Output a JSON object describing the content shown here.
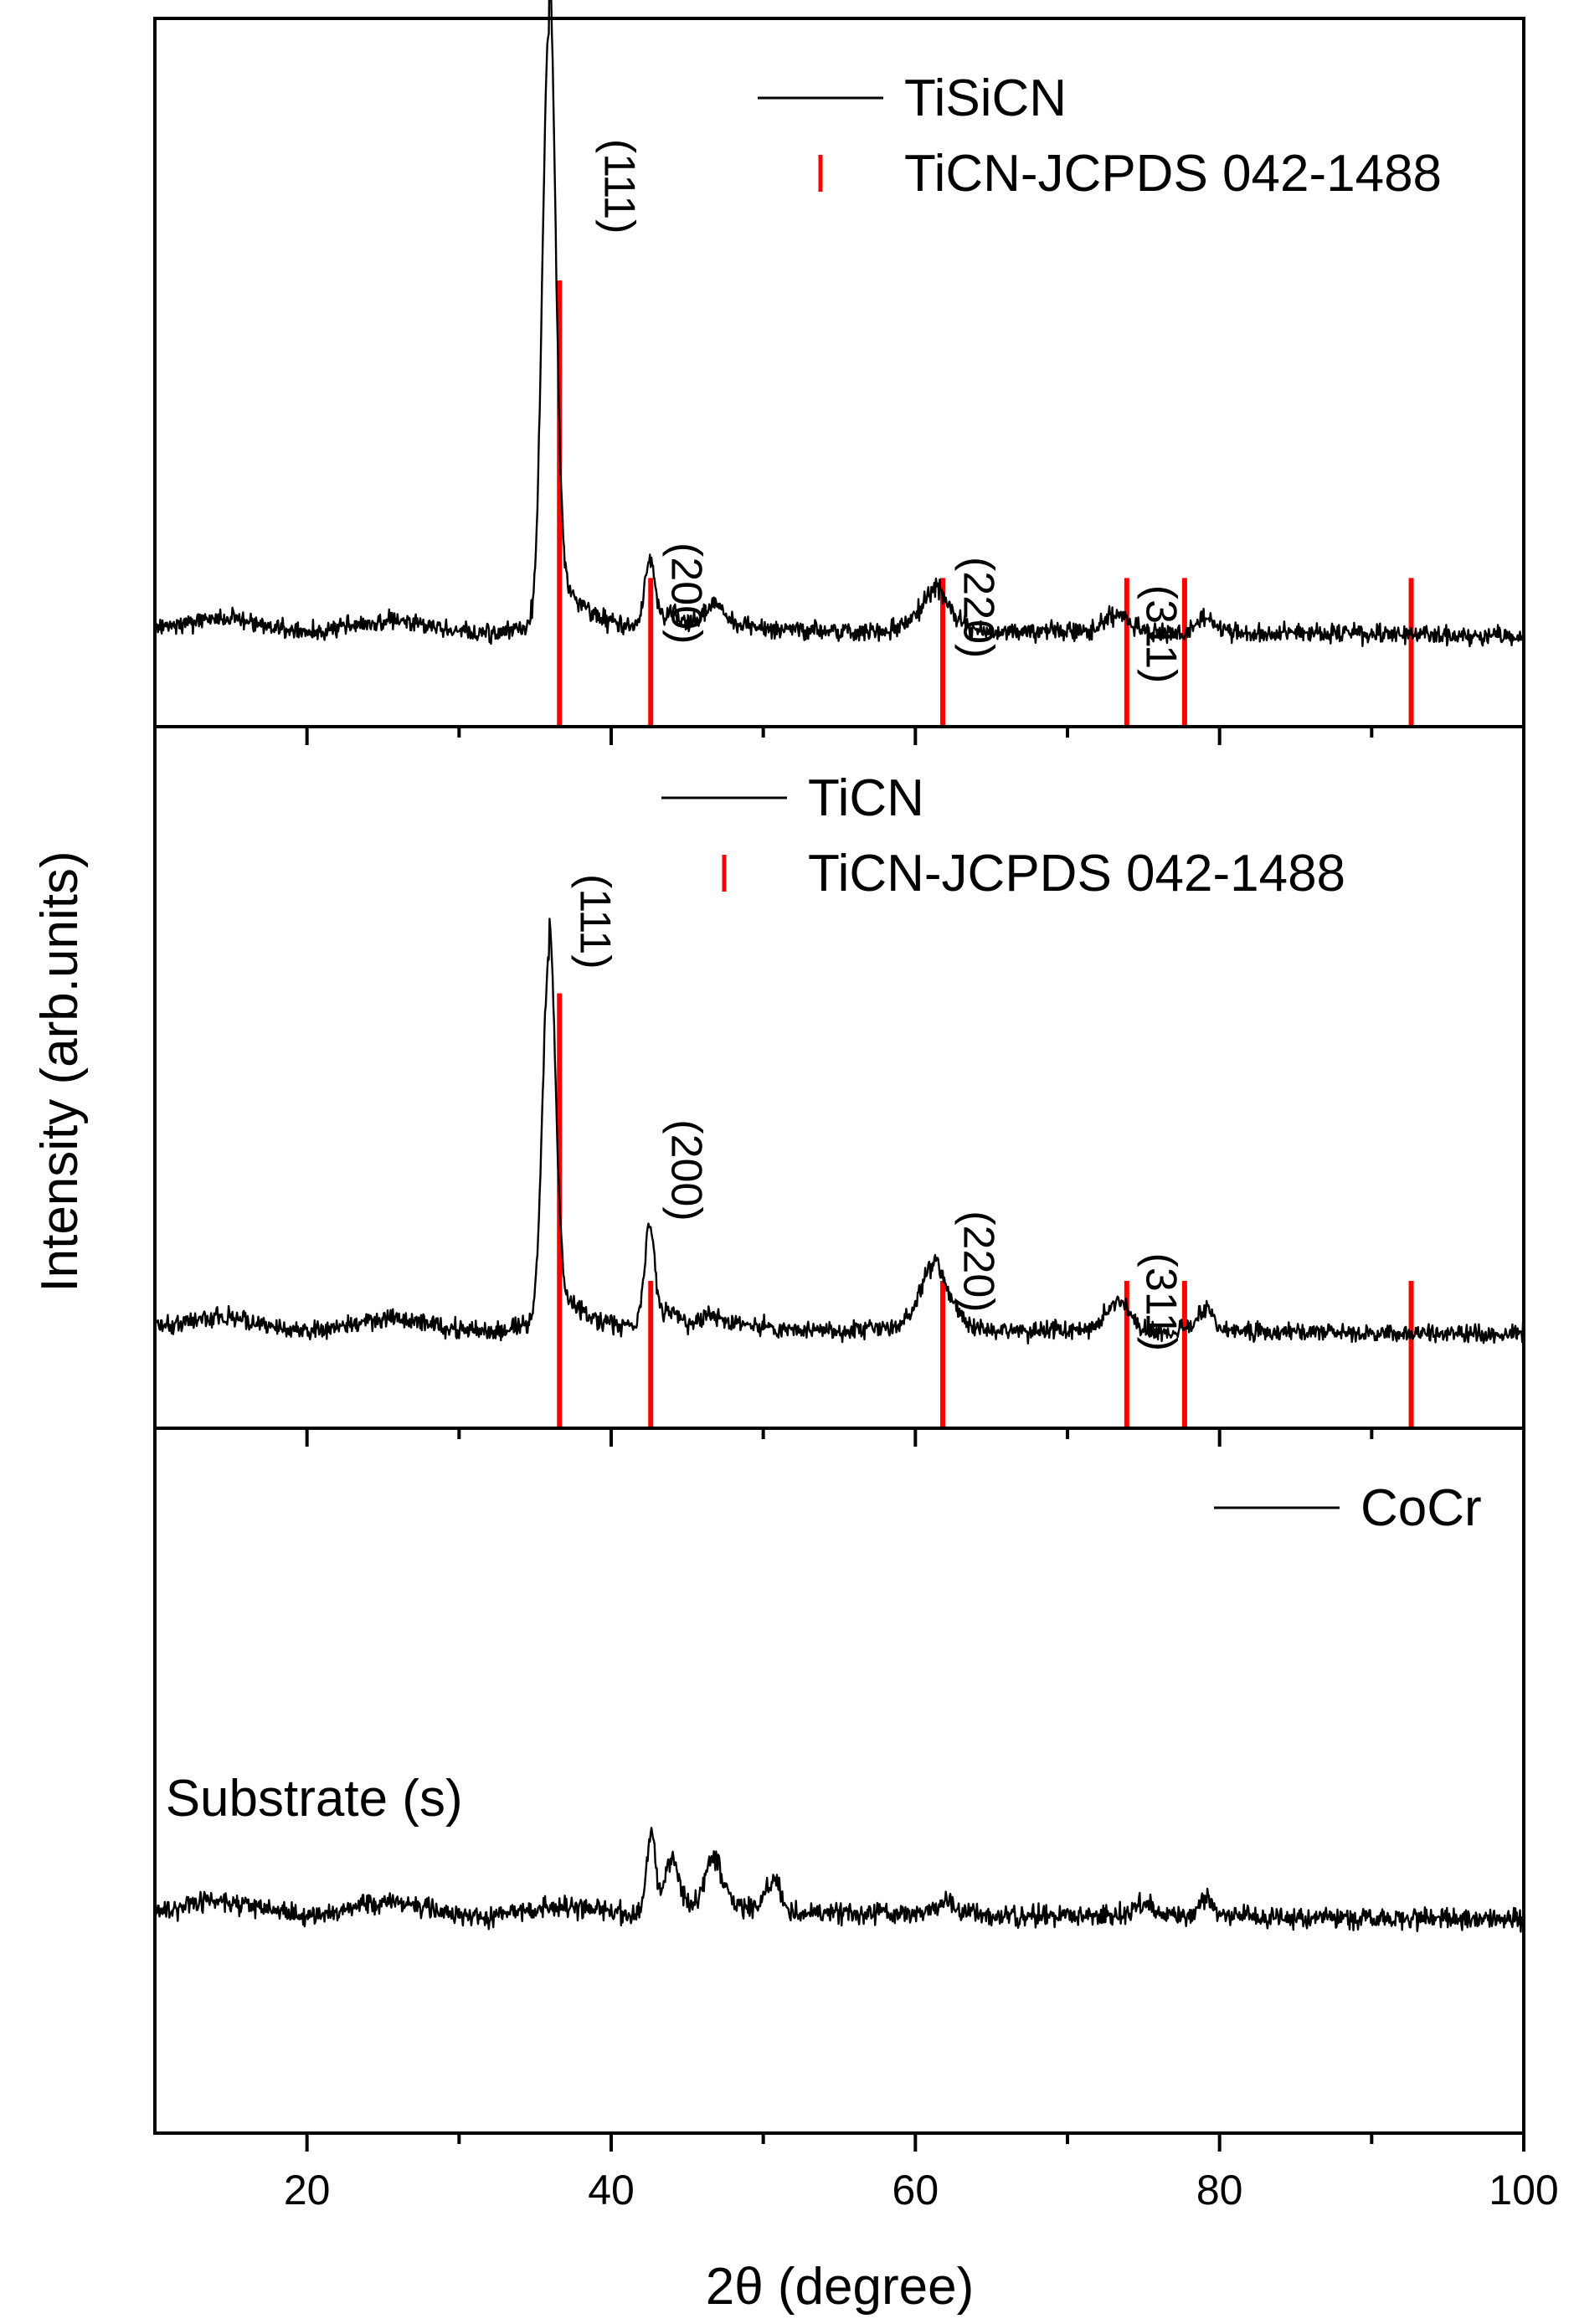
{
  "chart_data": {
    "type": "line",
    "xlabel": "2θ (degree)",
    "ylabel": "Intensity (arb.units)",
    "xlim": [
      10,
      100
    ],
    "xticks": [
      20,
      40,
      60,
      80,
      100
    ],
    "minor_xticks": [
      30,
      50,
      70,
      90
    ],
    "colors": {
      "trace": "#000000",
      "reference": "#ff0000"
    },
    "panels": [
      {
        "id": "top",
        "ylim": [
          0,
          100
        ],
        "legend": [
          {
            "label": "TiSiCN",
            "style": "line",
            "color": "#000000"
          },
          {
            "label": "TiCN-JCPDS 042-1488",
            "style": "stick",
            "color": "#ff0000"
          }
        ],
        "series": [
          {
            "name": "TiSiCN",
            "color": "#000000",
            "baseline": 14.5,
            "noise": 1.1,
            "peaks": [
              {
                "x": 35.9,
                "height": 84,
                "width": 0.42
              },
              {
                "x": 42.5,
                "height": 9.5,
                "width": 0.35
              },
              {
                "x": 43.9,
                "height": 2.0,
                "width": 0.5
              },
              {
                "x": 46.7,
                "height": 3.0,
                "width": 0.7
              },
              {
                "x": 61.3,
                "height": 5.5,
                "width": 0.9
              },
              {
                "x": 73.2,
                "height": 2.5,
                "width": 0.8
              },
              {
                "x": 79.0,
                "height": 2.0,
                "width": 0.5
              }
            ]
          }
        ],
        "reference_sticks": [
          {
            "x": 36.6,
            "intensity": 63
          },
          {
            "x": 42.6,
            "intensity": 21
          },
          {
            "x": 61.8,
            "intensity": 21
          },
          {
            "x": 73.9,
            "intensity": 21
          },
          {
            "x": 77.7,
            "intensity": 21
          },
          {
            "x": 92.6,
            "intensity": 21
          }
        ],
        "annotations": [
          {
            "text": "(111)",
            "x": 39.6,
            "y": 83
          },
          {
            "text": "(200)",
            "x": 44.0,
            "y": 26
          },
          {
            "text": "(220)",
            "x": 63.2,
            "y": 24
          },
          {
            "text": "(311)",
            "x": 75.2,
            "y": 20
          }
        ]
      },
      {
        "id": "middle",
        "ylim": [
          0,
          100
        ],
        "legend": [
          {
            "label": "TiCN",
            "style": "line",
            "color": "#000000"
          },
          {
            "label": "TiCN-JCPDS 042-1488",
            "style": "stick",
            "color": "#ff0000"
          }
        ],
        "series": [
          {
            "name": "TiCN",
            "color": "#000000",
            "baseline": 15,
            "noise": 1.1,
            "peaks": [
              {
                "x": 35.9,
                "height": 52,
                "width": 0.42
              },
              {
                "x": 42.5,
                "height": 14,
                "width": 0.35
              },
              {
                "x": 43.9,
                "height": 2.0,
                "width": 0.5
              },
              {
                "x": 46.6,
                "height": 1.5,
                "width": 0.6
              },
              {
                "x": 61.2,
                "height": 9,
                "width": 0.9
              },
              {
                "x": 73.2,
                "height": 4,
                "width": 0.8
              },
              {
                "x": 79.0,
                "height": 3,
                "width": 0.5
              }
            ]
          }
        ],
        "reference_sticks": [
          {
            "x": 36.6,
            "intensity": 62
          },
          {
            "x": 42.6,
            "intensity": 21
          },
          {
            "x": 61.8,
            "intensity": 21
          },
          {
            "x": 73.9,
            "intensity": 21
          },
          {
            "x": 77.7,
            "intensity": 21
          },
          {
            "x": 92.6,
            "intensity": 21
          }
        ],
        "annotations": [
          {
            "text": "(111)",
            "x": 38.0,
            "y": 79
          },
          {
            "text": "(200)",
            "x": 44.0,
            "y": 44
          },
          {
            "text": "(220)",
            "x": 63.2,
            "y": 31
          },
          {
            "text": "(311)",
            "x": 75.2,
            "y": 25
          }
        ]
      },
      {
        "id": "bottom",
        "ylim": [
          0,
          100
        ],
        "legend": [
          {
            "label": "CoCr",
            "style": "line",
            "color": "#000000"
          }
        ],
        "series": [
          {
            "name": "CoCr",
            "color": "#000000",
            "baseline": 32,
            "noise": 1.2,
            "peaks": [
              {
                "x": 42.6,
                "height": 11,
                "width": 0.3
              },
              {
                "x": 44.0,
                "height": 7,
                "width": 0.45
              },
              {
                "x": 46.7,
                "height": 6.5,
                "width": 0.6
              },
              {
                "x": 50.6,
                "height": 4.5,
                "width": 0.45
              },
              {
                "x": 62.0,
                "height": 1.8,
                "width": 0.6
              },
              {
                "x": 75.0,
                "height": 1.8,
                "width": 0.6
              },
              {
                "x": 79.1,
                "height": 2.2,
                "width": 0.4
              }
            ]
          }
        ],
        "reference_sticks": [],
        "annotations": [
          {
            "text": "Substrate (s)",
            "x": 10.7,
            "y": 45
          }
        ]
      }
    ]
  }
}
